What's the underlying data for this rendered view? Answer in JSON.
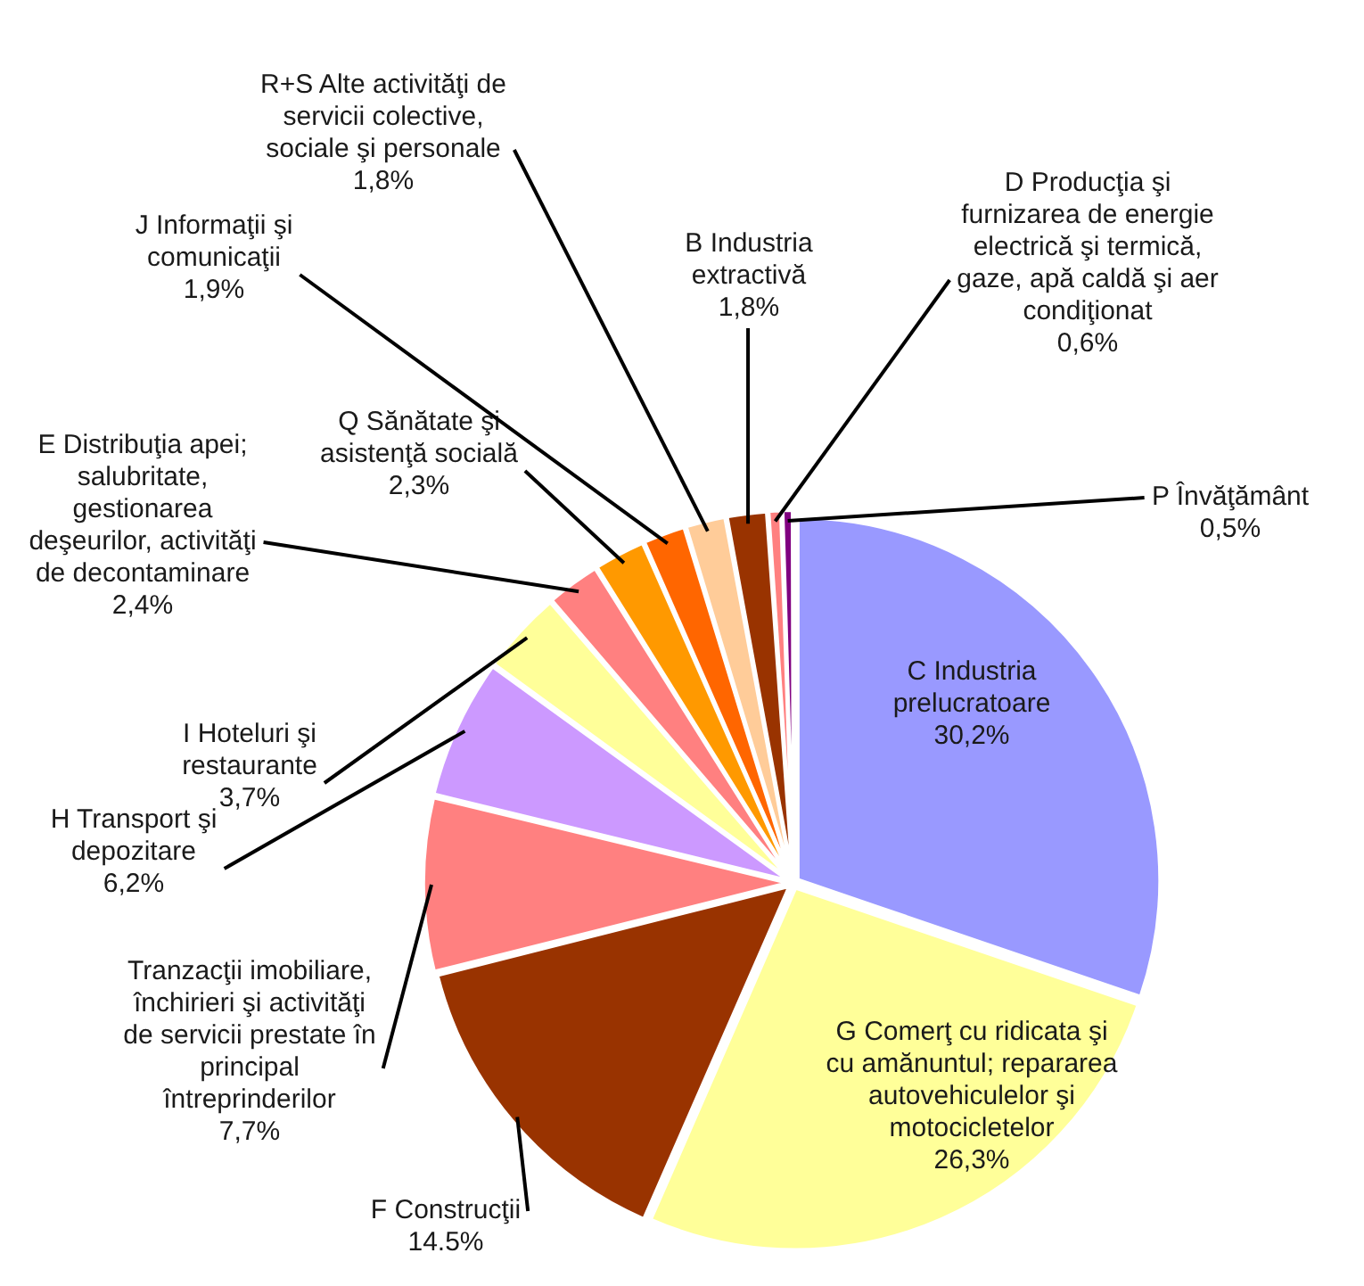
{
  "chart_data": {
    "type": "pie",
    "categories": [
      "C Industria prelucratoare",
      "G Comerţ cu ridicata şi cu amănuntul; repararea autovehiculelor şi motocicletelor",
      "F Construcţii",
      "Tranzacţii imobiliare, închirieri şi activităţi de servicii prestate în principal întreprinderilor",
      "H Transport şi depozitare",
      "I Hoteluri şi restaurante",
      "E Distribuţia apei; salubritate, gestionarea deşeurilor, activităţi de decontaminare",
      "Q Sănătate şi asistenţă socială",
      "J Informaţii şi comunicaţii",
      "R+S Alte activităţi de servicii colective, sociale şi personale",
      "B Industria extractivă",
      "D Producţia şi furnizarea de energie electrică şi termică, gaze, apă caldă şi aer condiţionat",
      "P Învăţământ"
    ],
    "values": [
      30.2,
      26.3,
      14.5,
      7.7,
      6.2,
      3.7,
      2.4,
      2.3,
      1.9,
      1.8,
      1.8,
      0.6,
      0.5
    ],
    "value_labels": [
      "30,2%",
      "26,3%",
      "14.5%",
      "7,7%",
      "6,2%",
      "3,7%",
      "2,4%",
      "2,3%",
      "1,9%",
      "1,8%",
      "1,8%",
      "0,6%",
      "0,5%"
    ],
    "colors": [
      "#9999ff",
      "#ffff99",
      "#993300",
      "#ff8080",
      "#cc99ff",
      "#ffff99",
      "#ff8080",
      "#ff9900",
      "#ff6600",
      "#ffcc99",
      "#993300",
      "#ff8080",
      "#800080"
    ]
  }
}
